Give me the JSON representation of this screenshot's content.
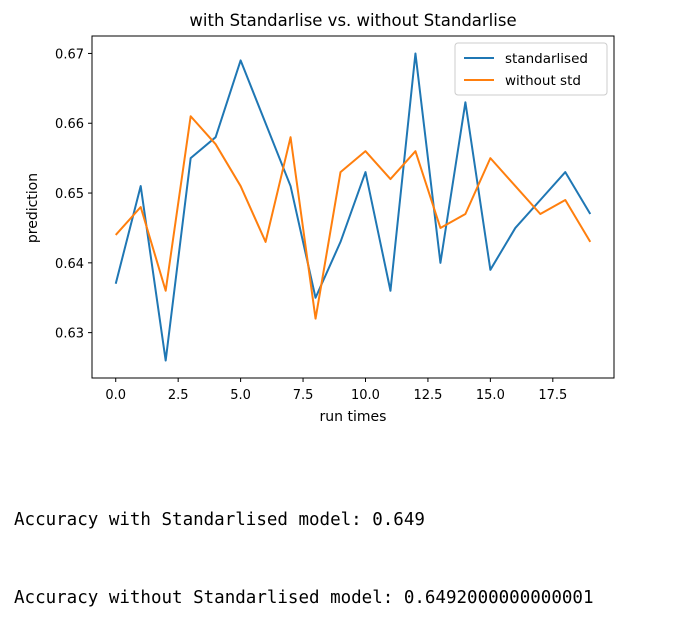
{
  "chart_data": {
    "type": "line",
    "title": "with Standarlise vs. without Standarlise",
    "xlabel": "run times",
    "ylabel": "prediction",
    "xlim": [
      -0.95,
      19.95
    ],
    "ylim": [
      0.6235,
      0.6725
    ],
    "xticks": [
      0.0,
      2.5,
      5.0,
      7.5,
      10.0,
      12.5,
      15.0,
      17.5
    ],
    "xtick_labels": [
      "0.0",
      "2.5",
      "5.0",
      "7.5",
      "10.0",
      "12.5",
      "15.0",
      "17.5"
    ],
    "yticks": [
      0.63,
      0.64,
      0.65,
      0.66,
      0.67
    ],
    "ytick_labels": [
      "0.63",
      "0.64",
      "0.65",
      "0.66",
      "0.67"
    ],
    "grid": false,
    "legend_position": "upper right",
    "x": [
      0,
      1,
      2,
      3,
      4,
      5,
      6,
      7,
      8,
      9,
      10,
      11,
      12,
      13,
      14,
      15,
      16,
      17,
      18,
      19
    ],
    "series": [
      {
        "name": "standarlised",
        "color": "#1f77b4",
        "values": [
          0.637,
          0.651,
          0.626,
          0.655,
          0.658,
          0.669,
          0.66,
          0.651,
          0.635,
          0.643,
          0.653,
          0.636,
          0.67,
          0.64,
          0.663,
          0.639,
          0.645,
          0.649,
          0.653,
          0.647
        ]
      },
      {
        "name": "without std",
        "color": "#ff7f0e",
        "values": [
          0.644,
          0.648,
          0.636,
          0.661,
          0.657,
          0.651,
          0.643,
          0.658,
          0.632,
          0.653,
          0.656,
          0.652,
          0.656,
          0.645,
          0.647,
          0.655,
          0.651,
          0.647,
          0.649,
          0.643
        ]
      }
    ]
  },
  "output": {
    "line1": "Accuracy with Standarlised model: 0.649",
    "line2": "Accuracy without Standarlised model: 0.6492000000000001"
  }
}
